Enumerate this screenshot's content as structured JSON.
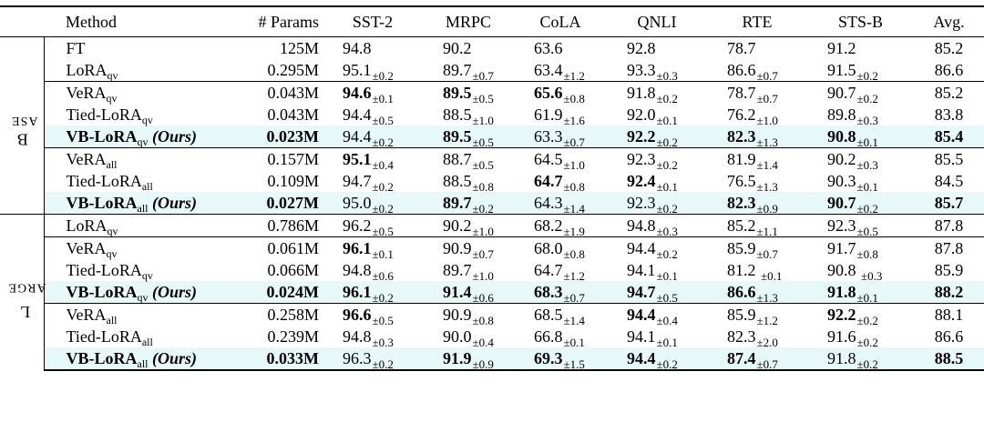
{
  "header": [
    "Method",
    "# Params",
    "SST-2",
    "MRPC",
    "CoLA",
    "QNLI",
    "RTE",
    "STS-B",
    "Avg."
  ],
  "groups": [
    {
      "label_big": "B",
      "label_rest": "ASE",
      "rows": [
        {
          "method": "FT",
          "sub": "",
          "ours": "",
          "params": "125M",
          "params_bold": false,
          "cells": [
            [
              "94.8",
              ""
            ],
            [
              "90.2",
              ""
            ],
            [
              "63.6",
              ""
            ],
            [
              "92.8",
              ""
            ],
            [
              "78.7",
              ""
            ],
            [
              "91.2",
              ""
            ]
          ],
          "bold": [
            false,
            false,
            false,
            false,
            false,
            false
          ],
          "avg": "85.2",
          "avg_bold": false,
          "hl": false,
          "sep": false
        },
        {
          "method": "LoRA",
          "sub": "qv",
          "ours": "",
          "params": "0.295M",
          "params_bold": false,
          "cells": [
            [
              "95.1",
              "±0.2"
            ],
            [
              "89.7",
              "±0.7"
            ],
            [
              "63.4",
              "±1.2"
            ],
            [
              "93.3",
              "±0.3"
            ],
            [
              "86.6",
              "±0.7"
            ],
            [
              "91.5",
              "±0.2"
            ]
          ],
          "bold": [
            false,
            false,
            false,
            false,
            false,
            false
          ],
          "avg": "86.6",
          "avg_bold": false,
          "hl": false,
          "sep": false
        },
        {
          "method": "VeRA",
          "sub": "qv",
          "ours": "",
          "params": "0.043M",
          "params_bold": false,
          "cells": [
            [
              "94.6",
              "±0.1"
            ],
            [
              "89.5",
              "±0.5"
            ],
            [
              "65.6",
              "±0.8"
            ],
            [
              "91.8",
              "±0.2"
            ],
            [
              "78.7",
              "±0.7"
            ],
            [
              "90.7",
              "±0.2"
            ]
          ],
          "bold": [
            true,
            true,
            true,
            false,
            false,
            false
          ],
          "avg": "85.2",
          "avg_bold": false,
          "hl": false,
          "sep": true
        },
        {
          "method": "Tied-LoRA",
          "sub": "qv",
          "ours": "",
          "params": "0.043M",
          "params_bold": false,
          "cells": [
            [
              "94.4",
              "±0.5"
            ],
            [
              "88.5",
              "±1.0"
            ],
            [
              "61.9",
              "±1.6"
            ],
            [
              "92.0",
              "±0.1"
            ],
            [
              "76.2",
              "±1.0"
            ],
            [
              "89.8",
              "±0.3"
            ]
          ],
          "bold": [
            false,
            false,
            false,
            false,
            false,
            false
          ],
          "avg": "83.8",
          "avg_bold": false,
          "hl": false,
          "sep": false
        },
        {
          "method": "VB-LoRA",
          "sub": "qv",
          "ours": "(Ours)",
          "params": "0.023M",
          "params_bold": true,
          "cells": [
            [
              "94.4",
              "±0.2"
            ],
            [
              "89.5",
              "±0.5"
            ],
            [
              "63.3",
              "±0.7"
            ],
            [
              "92.2",
              "±0.2"
            ],
            [
              "82.3",
              "±1.3"
            ],
            [
              "90.8",
              "±0.1"
            ]
          ],
          "bold": [
            false,
            true,
            false,
            true,
            true,
            true
          ],
          "avg": "85.4",
          "avg_bold": true,
          "hl": true,
          "sep": false
        },
        {
          "method": "VeRA",
          "sub": "all",
          "ours": "",
          "params": "0.157M",
          "params_bold": false,
          "cells": [
            [
              "95.1",
              "±0.4"
            ],
            [
              "88.7",
              "±0.5"
            ],
            [
              "64.5",
              "±1.0"
            ],
            [
              "92.3",
              "±0.2"
            ],
            [
              "81.9",
              "±1.4"
            ],
            [
              "90.2",
              "±0.3"
            ]
          ],
          "bold": [
            true,
            false,
            false,
            false,
            false,
            false
          ],
          "avg": "85.5",
          "avg_bold": false,
          "hl": false,
          "sep": true
        },
        {
          "method": "Tied-LoRA",
          "sub": "all",
          "ours": "",
          "params": "0.109M",
          "params_bold": false,
          "cells": [
            [
              "94.7",
              "±0.2"
            ],
            [
              "88.5",
              "±0.8"
            ],
            [
              "64.7",
              "±0.8"
            ],
            [
              "92.4",
              "±0.1"
            ],
            [
              "76.5",
              "±1.3"
            ],
            [
              "90.3",
              "±0.1"
            ]
          ],
          "bold": [
            false,
            false,
            true,
            true,
            false,
            false
          ],
          "avg": "84.5",
          "avg_bold": false,
          "hl": false,
          "sep": false
        },
        {
          "method": "VB-LoRA",
          "sub": "all",
          "ours": "(Ours)",
          "params": "0.027M",
          "params_bold": true,
          "cells": [
            [
              "95.0",
              "±0.2"
            ],
            [
              "89.7",
              "±0.2"
            ],
            [
              "64.3",
              "±1.4"
            ],
            [
              "92.3",
              "±0.2"
            ],
            [
              "82.3",
              "±0.9"
            ],
            [
              "90.7",
              "±0.2"
            ]
          ],
          "bold": [
            false,
            true,
            false,
            false,
            true,
            true
          ],
          "avg": "85.7",
          "avg_bold": true,
          "hl": true,
          "sep": false
        }
      ]
    },
    {
      "label_big": "L",
      "label_rest": "ARGE",
      "rows": [
        {
          "method": "LoRA",
          "sub": "qv",
          "ours": "",
          "params": "0.786M",
          "params_bold": false,
          "cells": [
            [
              "96.2",
              "±0.5"
            ],
            [
              "90.2",
              "±1.0"
            ],
            [
              "68.2",
              "±1.9"
            ],
            [
              "94.8",
              "±0.3"
            ],
            [
              "85.2",
              "±1.1"
            ],
            [
              "92.3",
              "±0.5"
            ]
          ],
          "bold": [
            false,
            false,
            false,
            false,
            false,
            false
          ],
          "avg": "87.8",
          "avg_bold": false,
          "hl": false,
          "sep": false
        },
        {
          "method": "VeRA",
          "sub": "qv",
          "ours": "",
          "params": "0.061M",
          "params_bold": false,
          "cells": [
            [
              "96.1",
              "±0.1"
            ],
            [
              "90.9",
              "±0.7"
            ],
            [
              "68.0",
              "±0.8"
            ],
            [
              "94.4",
              "±0.2"
            ],
            [
              "85.9",
              "±0.7"
            ],
            [
              "91.7",
              "±0.8"
            ]
          ],
          "bold": [
            true,
            false,
            false,
            false,
            false,
            false
          ],
          "avg": "87.8",
          "avg_bold": false,
          "hl": false,
          "sep": true
        },
        {
          "method": "Tied-LoRA",
          "sub": "qv",
          "ours": "",
          "params": "0.066M",
          "params_bold": false,
          "cells": [
            [
              "94.8",
              "±0.6"
            ],
            [
              "89.7",
              "±1.0"
            ],
            [
              "64.7",
              "±1.2"
            ],
            [
              "94.1",
              "±0.1"
            ],
            [
              "81.2 ",
              "±0.1"
            ],
            [
              "90.8 ",
              "±0.3"
            ]
          ],
          "bold": [
            false,
            false,
            false,
            false,
            false,
            false
          ],
          "avg": "85.9",
          "avg_bold": false,
          "hl": false,
          "sep": false
        },
        {
          "method": "VB-LoRA",
          "sub": "qv",
          "ours": "(Ours)",
          "params": "0.024M",
          "params_bold": true,
          "cells": [
            [
              "96.1",
              "±0.2"
            ],
            [
              "91.4",
              "±0.6"
            ],
            [
              "68.3",
              "±0.7"
            ],
            [
              "94.7",
              "±0.5"
            ],
            [
              "86.6",
              "±1.3"
            ],
            [
              "91.8",
              "±0.1"
            ]
          ],
          "bold": [
            true,
            true,
            true,
            true,
            true,
            true
          ],
          "avg": "88.2",
          "avg_bold": true,
          "hl": true,
          "sep": false
        },
        {
          "method": "VeRA",
          "sub": "all",
          "ours": "",
          "params": "0.258M",
          "params_bold": false,
          "cells": [
            [
              "96.6",
              "±0.5"
            ],
            [
              "90.9",
              "±0.8"
            ],
            [
              "68.5",
              "±1.4"
            ],
            [
              "94.4",
              "±0.4"
            ],
            [
              "85.9",
              "±1.2"
            ],
            [
              "92.2",
              "±0.2"
            ]
          ],
          "bold": [
            true,
            false,
            false,
            true,
            false,
            true
          ],
          "avg": "88.1",
          "avg_bold": false,
          "hl": false,
          "sep": true
        },
        {
          "method": "Tied-LoRA",
          "sub": "all",
          "ours": "",
          "params": "0.239M",
          "params_bold": false,
          "cells": [
            [
              "94.8",
              "±0.3"
            ],
            [
              "90.0",
              "±0.4"
            ],
            [
              "66.8",
              "±0.1"
            ],
            [
              "94.1",
              "±0.1"
            ],
            [
              "82.3",
              "±2.0"
            ],
            [
              "91.6",
              "±0.2"
            ]
          ],
          "bold": [
            false,
            false,
            false,
            false,
            false,
            false
          ],
          "avg": "86.6",
          "avg_bold": false,
          "hl": false,
          "sep": false
        },
        {
          "method": "VB-LoRA",
          "sub": "all",
          "ours": "(Ours)",
          "params": "0.033M",
          "params_bold": true,
          "cells": [
            [
              "96.3",
              "±0.2"
            ],
            [
              "91.9",
              "±0.9"
            ],
            [
              "69.3",
              "±1.5"
            ],
            [
              "94.4",
              "±0.2"
            ],
            [
              "87.4",
              "±0.7"
            ],
            [
              "91.8",
              "±0.2"
            ]
          ],
          "bold": [
            false,
            true,
            true,
            true,
            true,
            false
          ],
          "avg": "88.5",
          "avg_bold": true,
          "hl": true,
          "sep": false
        }
      ]
    }
  ],
  "highlight_color": "#e6f8f8"
}
